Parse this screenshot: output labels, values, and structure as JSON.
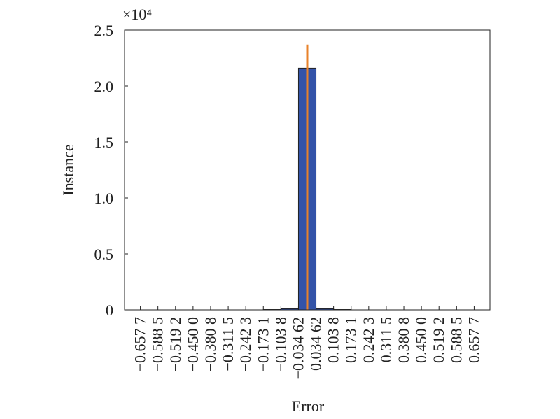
{
  "chart_data": {
    "type": "histogram",
    "y_label": "Instance",
    "x_label": "Error",
    "y_scale_label": "×10⁴",
    "bins": [
      -0.6577,
      -0.5885,
      -0.5192,
      -0.45,
      -0.3808,
      -0.3115,
      -0.2423,
      -0.1731,
      -0.1038,
      -0.03462,
      0.03462,
      0.1038,
      0.1731,
      0.2423,
      0.3115,
      0.3808,
      0.45,
      0.5192,
      0.5885,
      0.6577
    ],
    "bin_labels": [
      "−0.657 7",
      "−0.588 5",
      "−0.519 2",
      "−0.450 0",
      "−0.380 8",
      "−0.311 5",
      "−0.242 3",
      "−0.173 1",
      "−0.103 8",
      "−0.034 62",
      "0.034 62",
      "0.103 8",
      "0.173 1",
      "0.242 3",
      "0.311 5",
      "0.380 8",
      "0.450 0",
      "0.519 2",
      "0.588 5",
      "0.657 7"
    ],
    "values": [
      0,
      0,
      0,
      0,
      0,
      0,
      0,
      0.003,
      0.01,
      2.16,
      0.01,
      0.003,
      0,
      0,
      0,
      0,
      0,
      0,
      0
    ],
    "color": "#3353a8",
    "reference_line": {
      "x": 0,
      "y": 2.37,
      "color": "#e8822a"
    },
    "xlim": [
      -0.72,
      0.72
    ],
    "ylim": [
      0,
      2.5
    ],
    "yticks": [
      0,
      0.5,
      {
        "value": 1,
        "label": "1.0"
      },
      1.5,
      {
        "value": 2,
        "label": "2.0"
      },
      2.5
    ]
  }
}
